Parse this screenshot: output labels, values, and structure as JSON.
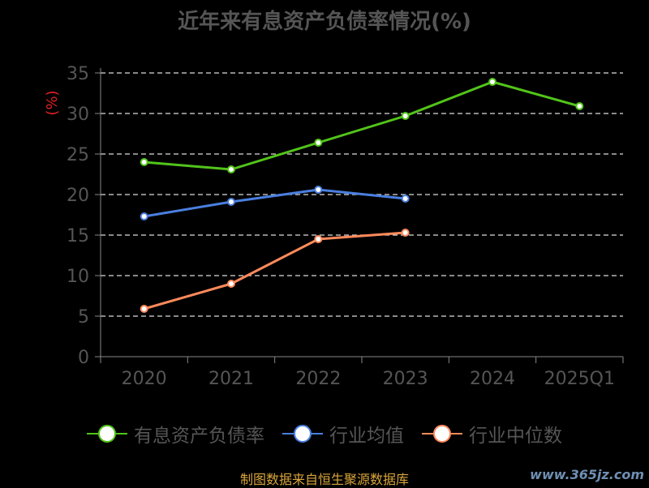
{
  "chart_data": {
    "type": "line",
    "title": "近年来有息资产负债率情况(%)",
    "ylabel": "(%)",
    "categories": [
      "2020",
      "2021",
      "2022",
      "2023",
      "2024",
      "2025Q1"
    ],
    "ylim": [
      0,
      35
    ],
    "yticks": [
      0,
      5,
      10,
      15,
      20,
      25,
      30,
      35
    ],
    "grid": true,
    "legend_position": "bottom",
    "series": [
      {
        "name": "有息资产负债率",
        "color": "#52c41a",
        "values": [
          24.0,
          23.1,
          26.4,
          29.7,
          33.9,
          30.9
        ]
      },
      {
        "name": "行业均值",
        "color": "#4a7fe0",
        "values": [
          17.3,
          19.1,
          20.6,
          19.5,
          null,
          null
        ]
      },
      {
        "name": "行业中位数",
        "color": "#ff8a5b",
        "values": [
          5.9,
          9.0,
          14.5,
          15.3,
          null,
          null
        ]
      }
    ]
  },
  "footer": {
    "source": "制图数据来自恒生聚源数据库",
    "watermark": "www.365jz.com"
  }
}
